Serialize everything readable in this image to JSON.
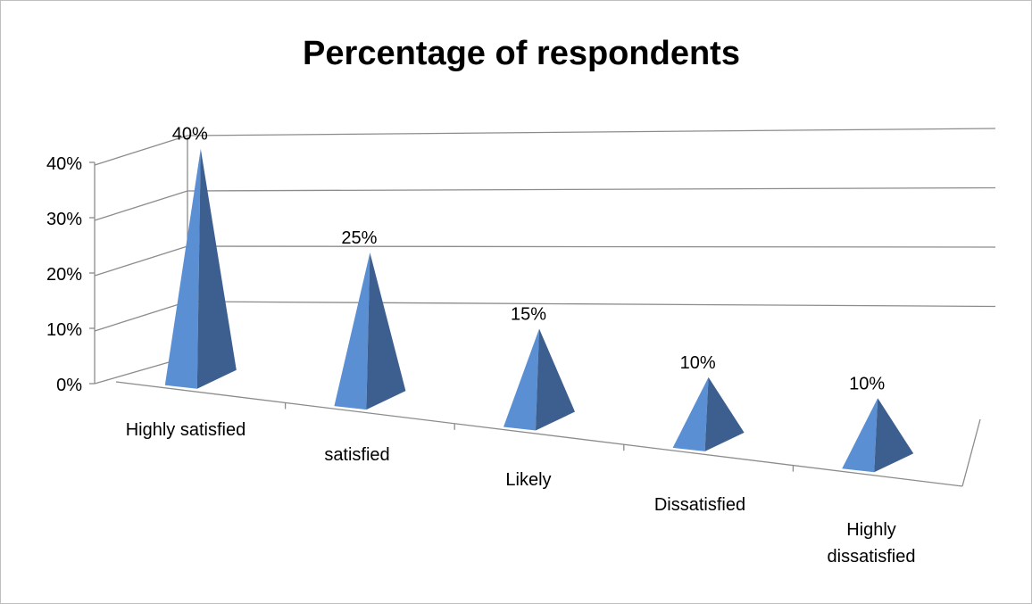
{
  "chart_data": {
    "type": "bar",
    "title": "Percentage of respondents",
    "categories": [
      "Highly satisfied",
      "satisfied",
      "Likely",
      "Dissatisfied",
      "Highly dissatisfied"
    ],
    "category_label_lines": [
      [
        "Highly satisfied"
      ],
      [
        "satisfied"
      ],
      [
        "Likely"
      ],
      [
        "Dissatisfied"
      ],
      [
        "Highly",
        "dissatisfied"
      ]
    ],
    "values": [
      40,
      25,
      15,
      10,
      10
    ],
    "data_labels": [
      "40%",
      "25%",
      "15%",
      "10%",
      "10%"
    ],
    "ylim": [
      0,
      40
    ],
    "yticks": [
      "0%",
      "10%",
      "20%",
      "30%",
      "40%"
    ],
    "xlabel": "",
    "ylabel": "",
    "grid": true,
    "legend": "none",
    "style": "3d-pyramid",
    "colors": {
      "front_face": "#5b8fd4",
      "side_face": "#3d5f8f",
      "grid": "#8c8c8c",
      "axis": "#8c8c8c",
      "text": "#000000"
    }
  }
}
